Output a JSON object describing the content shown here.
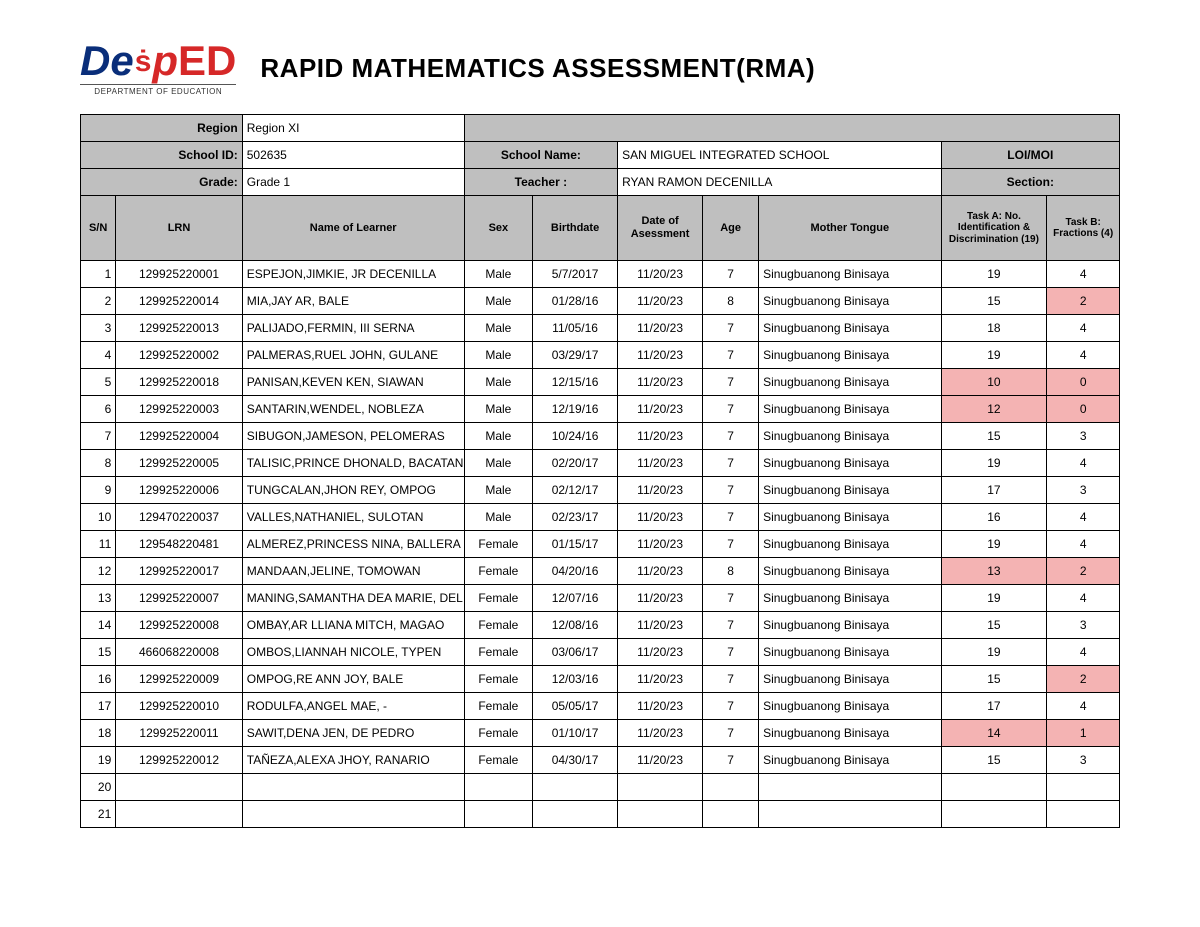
{
  "title": "RAPID MATHEMATICS ASSESSMENT(RMA)",
  "logo": {
    "de": "De",
    "p": "p",
    "ed": "ED",
    "sub": "DEPARTMENT OF EDUCATION"
  },
  "meta": {
    "region_label": "Region",
    "region_value": "Region XI",
    "schoolid_label": "School ID:",
    "schoolid_value": "502635",
    "schoolname_label": "School Name:",
    "schoolname_value": "SAN MIGUEL INTEGRATED SCHOOL",
    "loimoi_label": "LOI/MOI",
    "grade_label": "Grade:",
    "grade_value": "Grade 1",
    "teacher_label": "Teacher :",
    "teacher_value": "RYAN RAMON DECENILLA",
    "section_label": "Section:"
  },
  "columns": {
    "sn": "S/N",
    "lrn": "LRN",
    "name": "Name of Learner",
    "sex": "Sex",
    "birthdate": "Birthdate",
    "doa": "Date of Asessment",
    "age": "Age",
    "mt": "Mother Tongue",
    "taskA": "Task A: No. Identification & Discrimination (19)",
    "taskB": "Task B: Fractions (4)"
  },
  "widths": {
    "sn": "34px",
    "lrn": "122px",
    "name": "214px",
    "sex": "66px",
    "birthdate": "82px",
    "doa": "82px",
    "age": "54px",
    "mt": "176px",
    "taskA": "102px",
    "taskB": "70px"
  },
  "flag_color": "#f4b3b3",
  "rows": [
    {
      "sn": "1",
      "lrn": "129925220001",
      "name": "ESPEJON,JIMKIE, JR DECENILLA",
      "sex": "Male",
      "bd": "5/7/2017",
      "doa": "11/20/23",
      "age": "7",
      "mt": "Sinugbuanong Binisaya",
      "a": "19",
      "b": "4",
      "fa": false,
      "fb": false
    },
    {
      "sn": "2",
      "lrn": "129925220014",
      "name": "MIA,JAY AR, BALE",
      "sex": "Male",
      "bd": "01/28/16",
      "doa": "11/20/23",
      "age": "8",
      "mt": "Sinugbuanong Binisaya",
      "a": "15",
      "b": "2",
      "fa": false,
      "fb": true
    },
    {
      "sn": "3",
      "lrn": "129925220013",
      "name": "PALIJADO,FERMIN, III SERNA",
      "sex": "Male",
      "bd": "11/05/16",
      "doa": "11/20/23",
      "age": "7",
      "mt": "Sinugbuanong Binisaya",
      "a": "18",
      "b": "4",
      "fa": false,
      "fb": false
    },
    {
      "sn": "4",
      "lrn": "129925220002",
      "name": "PALMERAS,RUEL JOHN, GULANE",
      "sex": "Male",
      "bd": "03/29/17",
      "doa": "11/20/23",
      "age": "7",
      "mt": "Sinugbuanong Binisaya",
      "a": "19",
      "b": "4",
      "fa": false,
      "fb": false
    },
    {
      "sn": "5",
      "lrn": "129925220018",
      "name": "PANISAN,KEVEN KEN, SIAWAN",
      "sex": "Male",
      "bd": "12/15/16",
      "doa": "11/20/23",
      "age": "7",
      "mt": "Sinugbuanong Binisaya",
      "a": "10",
      "b": "0",
      "fa": true,
      "fb": true
    },
    {
      "sn": "6",
      "lrn": "129925220003",
      "name": "SANTARIN,WENDEL, NOBLEZA",
      "sex": "Male",
      "bd": "12/19/16",
      "doa": "11/20/23",
      "age": "7",
      "mt": "Sinugbuanong Binisaya",
      "a": "12",
      "b": "0",
      "fa": true,
      "fb": true
    },
    {
      "sn": "7",
      "lrn": "129925220004",
      "name": "SIBUGON,JAMESON, PELOMERAS",
      "sex": "Male",
      "bd": "10/24/16",
      "doa": "11/20/23",
      "age": "7",
      "mt": "Sinugbuanong Binisaya",
      "a": "15",
      "b": "3",
      "fa": false,
      "fb": false
    },
    {
      "sn": "8",
      "lrn": "129925220005",
      "name": "TALISIC,PRINCE DHONALD, BACATAN",
      "sex": "Male",
      "bd": "02/20/17",
      "doa": "11/20/23",
      "age": "7",
      "mt": "Sinugbuanong Binisaya",
      "a": "19",
      "b": "4",
      "fa": false,
      "fb": false
    },
    {
      "sn": "9",
      "lrn": "129925220006",
      "name": "TUNGCALAN,JHON REY, OMPOG",
      "sex": "Male",
      "bd": "02/12/17",
      "doa": "11/20/23",
      "age": "7",
      "mt": "Sinugbuanong Binisaya",
      "a": "17",
      "b": "3",
      "fa": false,
      "fb": false
    },
    {
      "sn": "10",
      "lrn": "129470220037",
      "name": "VALLES,NATHANIEL, SULOTAN",
      "sex": "Male",
      "bd": "02/23/17",
      "doa": "11/20/23",
      "age": "7",
      "mt": "Sinugbuanong Binisaya",
      "a": "16",
      "b": "4",
      "fa": false,
      "fb": false
    },
    {
      "sn": "11",
      "lrn": "129548220481",
      "name": "ALMEREZ,PRINCESS NINA, BALLERA",
      "sex": "Female",
      "bd": "01/15/17",
      "doa": "11/20/23",
      "age": "7",
      "mt": "Sinugbuanong Binisaya",
      "a": "19",
      "b": "4",
      "fa": false,
      "fb": false
    },
    {
      "sn": "12",
      "lrn": "129925220017",
      "name": "MANDAAN,JELINE, TOMOWAN",
      "sex": "Female",
      "bd": "04/20/16",
      "doa": "11/20/23",
      "age": "8",
      "mt": "Sinugbuanong Binisaya",
      "a": "13",
      "b": "2",
      "fa": true,
      "fb": true
    },
    {
      "sn": "13",
      "lrn": "129925220007",
      "name": "MANING,SAMANTHA DEA MARIE, DEL",
      "sex": "Female",
      "bd": "12/07/16",
      "doa": "11/20/23",
      "age": "7",
      "mt": "Sinugbuanong Binisaya",
      "a": "19",
      "b": "4",
      "fa": false,
      "fb": false
    },
    {
      "sn": "14",
      "lrn": "129925220008",
      "name": "OMBAY,AR LLIANA MITCH, MAGAO",
      "sex": "Female",
      "bd": "12/08/16",
      "doa": "11/20/23",
      "age": "7",
      "mt": "Sinugbuanong Binisaya",
      "a": "15",
      "b": "3",
      "fa": false,
      "fb": false
    },
    {
      "sn": "15",
      "lrn": "466068220008",
      "name": "OMBOS,LIANNAH NICOLE, TYPEN",
      "sex": "Female",
      "bd": "03/06/17",
      "doa": "11/20/23",
      "age": "7",
      "mt": "Sinugbuanong Binisaya",
      "a": "19",
      "b": "4",
      "fa": false,
      "fb": false
    },
    {
      "sn": "16",
      "lrn": "129925220009",
      "name": "OMPOG,RE ANN JOY, BALE",
      "sex": "Female",
      "bd": "12/03/16",
      "doa": "11/20/23",
      "age": "7",
      "mt": "Sinugbuanong Binisaya",
      "a": "15",
      "b": "2",
      "fa": false,
      "fb": true
    },
    {
      "sn": "17",
      "lrn": "129925220010",
      "name": "RODULFA,ANGEL MAE, -",
      "sex": "Female",
      "bd": "05/05/17",
      "doa": "11/20/23",
      "age": "7",
      "mt": "Sinugbuanong Binisaya",
      "a": "17",
      "b": "4",
      "fa": false,
      "fb": false
    },
    {
      "sn": "18",
      "lrn": "129925220011",
      "name": "SAWIT,DENA JEN, DE PEDRO",
      "sex": "Female",
      "bd": "01/10/17",
      "doa": "11/20/23",
      "age": "7",
      "mt": "Sinugbuanong Binisaya",
      "a": "14",
      "b": "1",
      "fa": true,
      "fb": true
    },
    {
      "sn": "19",
      "lrn": "129925220012",
      "name": "TAÑEZA,ALEXA JHOY, RANARIO",
      "sex": "Female",
      "bd": "04/30/17",
      "doa": "11/20/23",
      "age": "7",
      "mt": "Sinugbuanong Binisaya",
      "a": "15",
      "b": "3",
      "fa": false,
      "fb": false
    },
    {
      "sn": "20",
      "lrn": "",
      "name": "",
      "sex": "",
      "bd": "",
      "doa": "",
      "age": "",
      "mt": "",
      "a": "",
      "b": "",
      "fa": false,
      "fb": false
    },
    {
      "sn": "21",
      "lrn": "",
      "name": "",
      "sex": "",
      "bd": "",
      "doa": "",
      "age": "",
      "mt": "",
      "a": "",
      "b": "",
      "fa": false,
      "fb": false
    }
  ]
}
